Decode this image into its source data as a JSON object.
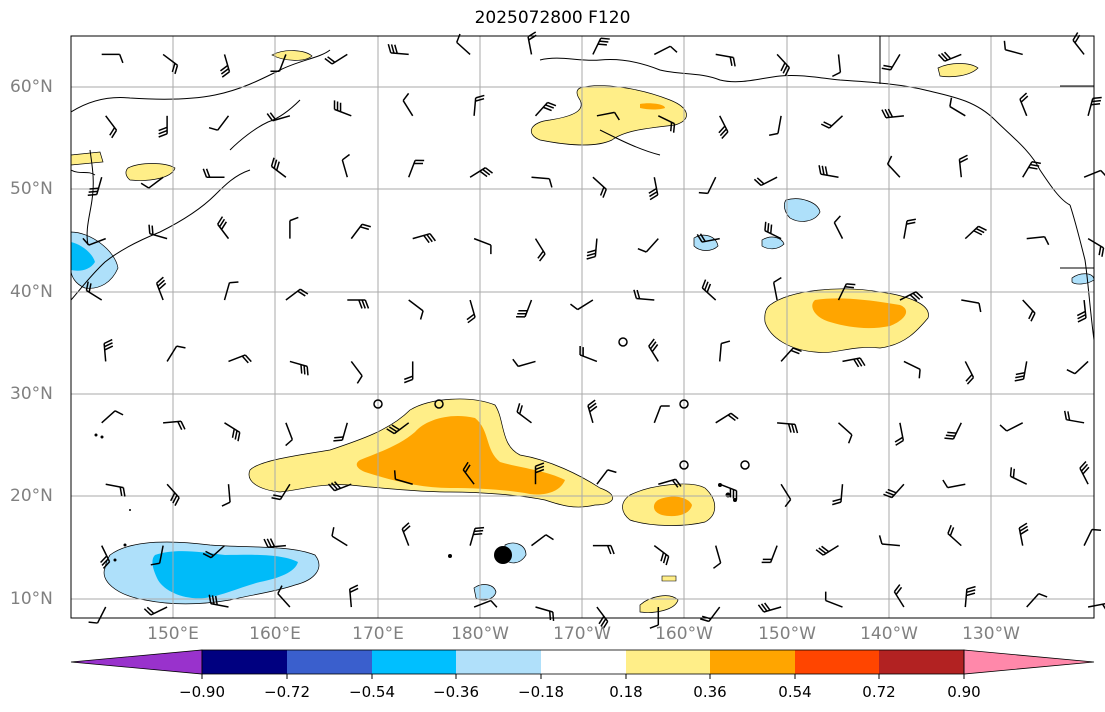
{
  "title": "2025072800 F120",
  "map": {
    "lat_labels": [
      "60°N",
      "50°N",
      "40°N",
      "30°N",
      "20°N",
      "10°N"
    ],
    "lon_labels": [
      "150°E",
      "160°E",
      "170°E",
      "180°W",
      "170°W",
      "160°W",
      "150°W",
      "140°W",
      "130°W"
    ],
    "grid": true,
    "field_colors": {
      "light_yellow": "#ffee88",
      "orange": "#ffa500",
      "light_blue": "#aee0fa",
      "cyan": "#00bbf9"
    }
  },
  "colorbar": {
    "ticks": [
      "−0.90",
      "−0.72",
      "−0.54",
      "−0.36",
      "−0.18",
      "0.18",
      "0.36",
      "0.54",
      "0.72",
      "0.90"
    ],
    "colors": [
      "#9932cc",
      "#000080",
      "#3a5fcd",
      "#00bfff",
      "#b0e0fa",
      "#ffffff",
      "#ffee88",
      "#ffa500",
      "#ff4500",
      "#b22222",
      "#ff88aa"
    ],
    "extend": "both"
  }
}
